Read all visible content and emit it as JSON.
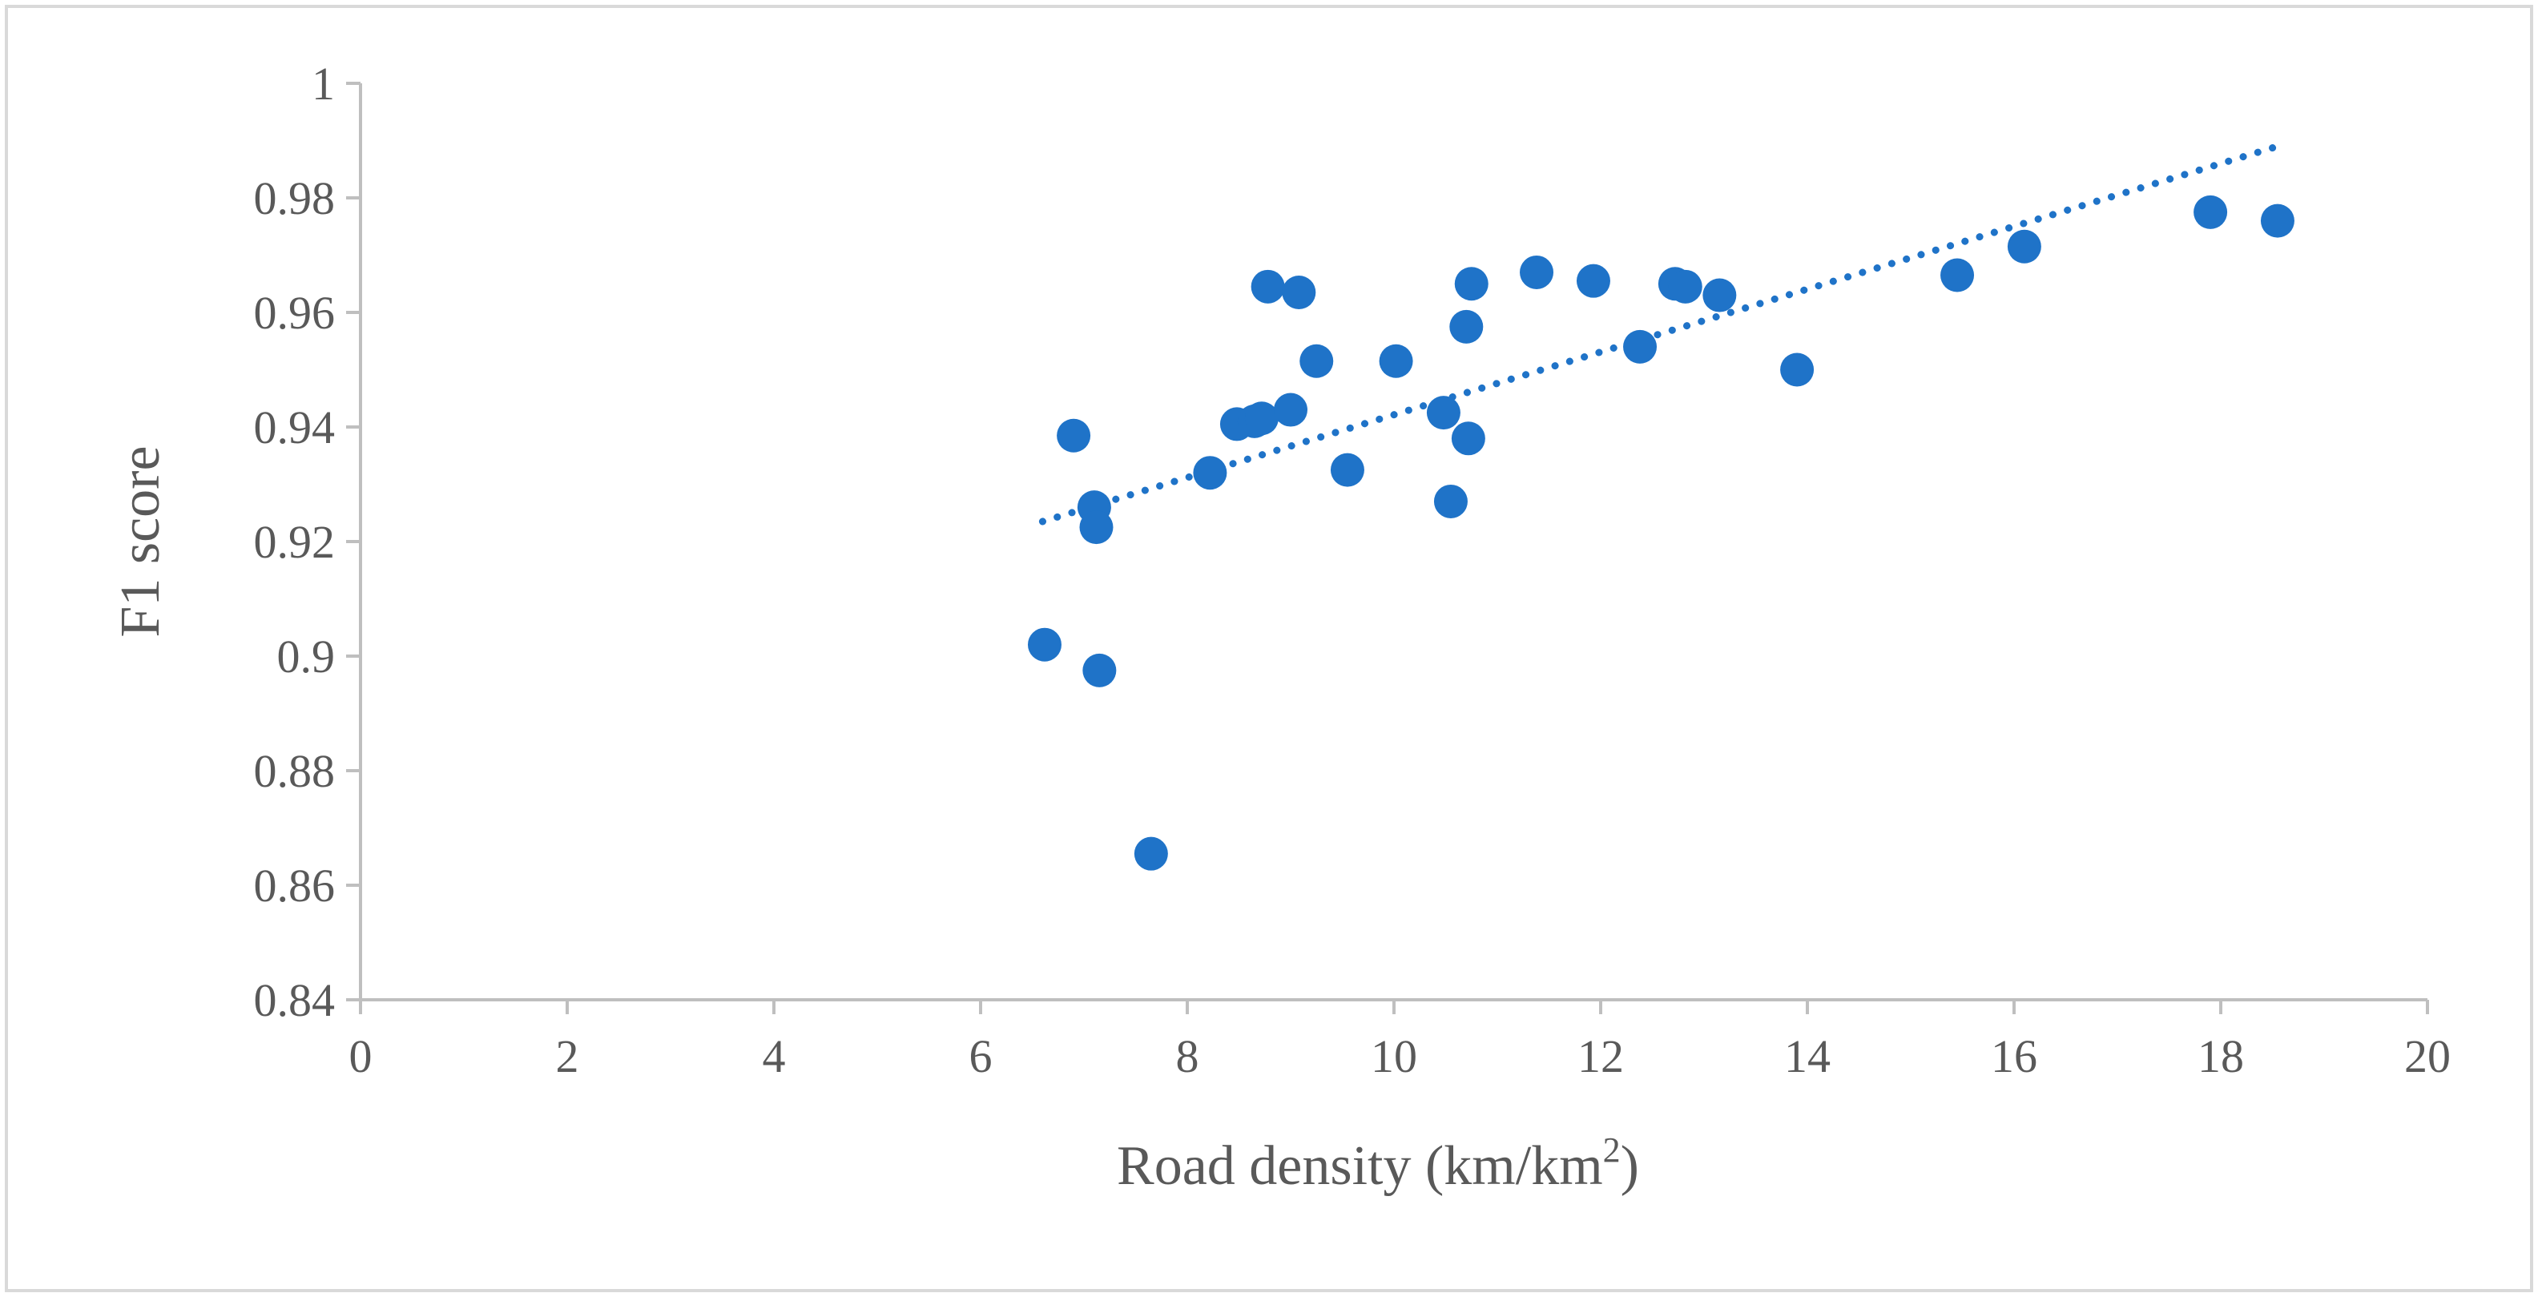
{
  "chart_data": {
    "type": "scatter",
    "title": "",
    "xlabel": "Road density (km/km",
    "xlabel_superscript": "2",
    "xlabel_suffix": ")",
    "ylabel": "F1 score",
    "xlim": [
      0,
      20
    ],
    "ylim": [
      0.84,
      1.0
    ],
    "x_ticks": [
      0,
      2,
      4,
      6,
      8,
      10,
      12,
      14,
      16,
      18,
      20
    ],
    "x_tick_labels": [
      "0",
      "2",
      "4",
      "6",
      "8",
      "10",
      "12",
      "14",
      "16",
      "18",
      "20"
    ],
    "y_ticks": [
      0.84,
      0.86,
      0.88,
      0.9,
      0.92,
      0.94,
      0.96,
      0.98,
      1.0
    ],
    "y_tick_labels": [
      "0.84",
      "0.86",
      "0.88",
      "0.9",
      "0.92",
      "0.94",
      "0.96",
      "0.98",
      "1"
    ],
    "grid": false,
    "legend": "none",
    "marker_color": "#1f73c8",
    "trendline_color": "#1f73c8",
    "axis_color": "#bfbfbf",
    "border_color": "#d9d9d9",
    "points": [
      {
        "x": 6.62,
        "y": 0.902
      },
      {
        "x": 6.9,
        "y": 0.9385
      },
      {
        "x": 7.1,
        "y": 0.926
      },
      {
        "x": 7.12,
        "y": 0.9225
      },
      {
        "x": 7.15,
        "y": 0.8975
      },
      {
        "x": 7.65,
        "y": 0.8655
      },
      {
        "x": 8.22,
        "y": 0.932
      },
      {
        "x": 8.48,
        "y": 0.9405
      },
      {
        "x": 8.65,
        "y": 0.941
      },
      {
        "x": 8.72,
        "y": 0.9415
      },
      {
        "x": 8.78,
        "y": 0.9645
      },
      {
        "x": 9.0,
        "y": 0.943
      },
      {
        "x": 9.08,
        "y": 0.9635
      },
      {
        "x": 9.25,
        "y": 0.9515
      },
      {
        "x": 9.55,
        "y": 0.9325
      },
      {
        "x": 10.02,
        "y": 0.9515
      },
      {
        "x": 10.48,
        "y": 0.9425
      },
      {
        "x": 10.55,
        "y": 0.927
      },
      {
        "x": 10.7,
        "y": 0.9575
      },
      {
        "x": 10.72,
        "y": 0.938
      },
      {
        "x": 10.75,
        "y": 0.965
      },
      {
        "x": 11.38,
        "y": 0.967
      },
      {
        "x": 11.93,
        "y": 0.9655
      },
      {
        "x": 12.38,
        "y": 0.954
      },
      {
        "x": 12.72,
        "y": 0.965
      },
      {
        "x": 12.82,
        "y": 0.9645
      },
      {
        "x": 13.15,
        "y": 0.963
      },
      {
        "x": 13.9,
        "y": 0.95
      },
      {
        "x": 15.45,
        "y": 0.9665
      },
      {
        "x": 16.1,
        "y": 0.9715
      },
      {
        "x": 17.9,
        "y": 0.9775
      },
      {
        "x": 18.55,
        "y": 0.976
      }
    ],
    "trendline": {
      "type": "linear",
      "x": [
        6.6,
        18.55
      ],
      "y": [
        0.9235,
        0.989
      ]
    }
  }
}
